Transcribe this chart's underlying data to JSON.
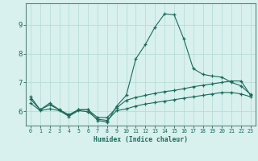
{
  "xlabel": "Humidex (Indice chaleur)",
  "bg_color": "#d8f0ee",
  "grid_color": "#b8ddd8",
  "line_color": "#1a6b5a",
  "spine_color": "#5a8a80",
  "xlim": [
    -0.5,
    23.5
  ],
  "ylim": [
    5.5,
    9.75
  ],
  "xticks": [
    0,
    1,
    2,
    3,
    4,
    5,
    6,
    7,
    8,
    9,
    10,
    11,
    12,
    13,
    14,
    15,
    16,
    17,
    18,
    19,
    20,
    21,
    22,
    23
  ],
  "yticks": [
    6,
    7,
    8,
    9
  ],
  "line1_y": [
    6.5,
    6.05,
    6.28,
    6.05,
    5.85,
    6.05,
    6.05,
    5.68,
    5.62,
    6.18,
    6.55,
    7.82,
    8.32,
    8.92,
    9.38,
    9.35,
    8.52,
    7.48,
    7.28,
    7.22,
    7.18,
    7.0,
    6.88,
    6.58
  ],
  "line2_y": [
    6.42,
    6.05,
    6.22,
    6.05,
    5.88,
    6.05,
    6.05,
    5.78,
    5.78,
    6.12,
    6.38,
    6.48,
    6.55,
    6.62,
    6.68,
    6.72,
    6.78,
    6.85,
    6.9,
    6.95,
    7.0,
    7.05,
    7.05,
    6.55
  ],
  "line3_y": [
    6.28,
    6.02,
    6.08,
    6.02,
    5.82,
    6.02,
    5.98,
    5.72,
    5.68,
    6.02,
    6.08,
    6.18,
    6.25,
    6.3,
    6.35,
    6.4,
    6.45,
    6.5,
    6.55,
    6.6,
    6.65,
    6.65,
    6.6,
    6.5
  ]
}
